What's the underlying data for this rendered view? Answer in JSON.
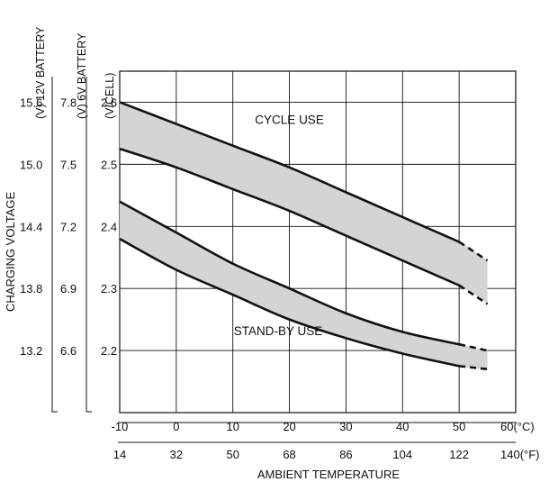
{
  "chart_data": {
    "type": "area",
    "xlabel": "AMBIENT TEMPERATURE",
    "ylabel": "CHARGING VOLTAGE",
    "x_unit_c": "60(°C)",
    "x_unit_f": "140(°F)",
    "y_unit_cell": "(V/CELL)",
    "y_unit_6v": "(V) 6V BATTERY",
    "y_unit_12v": "(V) 12V BATTERY",
    "xlim_c": [
      -10,
      60
    ],
    "ylim": [
      2.1,
      2.65
    ],
    "x_ticks_c": [
      "-10",
      "0",
      "10",
      "20",
      "30",
      "40",
      "50"
    ],
    "x_ticks_f": [
      "14",
      "32",
      "50",
      "68",
      "86",
      "104",
      "122"
    ],
    "x_tick_values": [
      -10,
      0,
      10,
      20,
      30,
      40,
      50
    ],
    "y_ticks_cell": [
      "2.6",
      "2.5",
      "2.4",
      "2.3",
      "2.2"
    ],
    "y_ticks_6v": [
      "7.8",
      "7.5",
      "7.2",
      "6.9",
      "6.6"
    ],
    "y_ticks_12v": [
      "15.6",
      "15.0",
      "14.4",
      "13.8",
      "13.2"
    ],
    "y_tick_values": [
      2.6,
      2.5,
      2.4,
      2.3,
      2.2
    ],
    "grid": true,
    "series": [
      {
        "name": "CYCLE USE",
        "upper": [
          [
            -10,
            2.6
          ],
          [
            0,
            2.565
          ],
          [
            10,
            2.53
          ],
          [
            20,
            2.495
          ],
          [
            30,
            2.455
          ],
          [
            40,
            2.415
          ],
          [
            50,
            2.375
          ]
        ],
        "lower": [
          [
            -10,
            2.525
          ],
          [
            0,
            2.495
          ],
          [
            10,
            2.46
          ],
          [
            20,
            2.425
          ],
          [
            30,
            2.385
          ],
          [
            40,
            2.345
          ],
          [
            50,
            2.305
          ]
        ],
        "extrapolated_to": 55,
        "upper_end": 2.345,
        "lower_end": 2.275
      },
      {
        "name": "STAND-BY USE",
        "upper": [
          [
            -10,
            2.44
          ],
          [
            0,
            2.39
          ],
          [
            10,
            2.34
          ],
          [
            20,
            2.3
          ],
          [
            30,
            2.26
          ],
          [
            40,
            2.23
          ],
          [
            50,
            2.21
          ]
        ],
        "lower": [
          [
            -10,
            2.38
          ],
          [
            0,
            2.33
          ],
          [
            10,
            2.29
          ],
          [
            20,
            2.25
          ],
          [
            30,
            2.22
          ],
          [
            40,
            2.195
          ],
          [
            50,
            2.175
          ]
        ],
        "extrapolated_to": 55,
        "upper_end": 2.2,
        "lower_end": 2.17
      }
    ],
    "labels": [
      {
        "text": "CYCLE USE",
        "x": 20,
        "y": 2.565
      },
      {
        "text": "STAND-BY USE",
        "x": 18,
        "y": 2.225
      }
    ]
  }
}
